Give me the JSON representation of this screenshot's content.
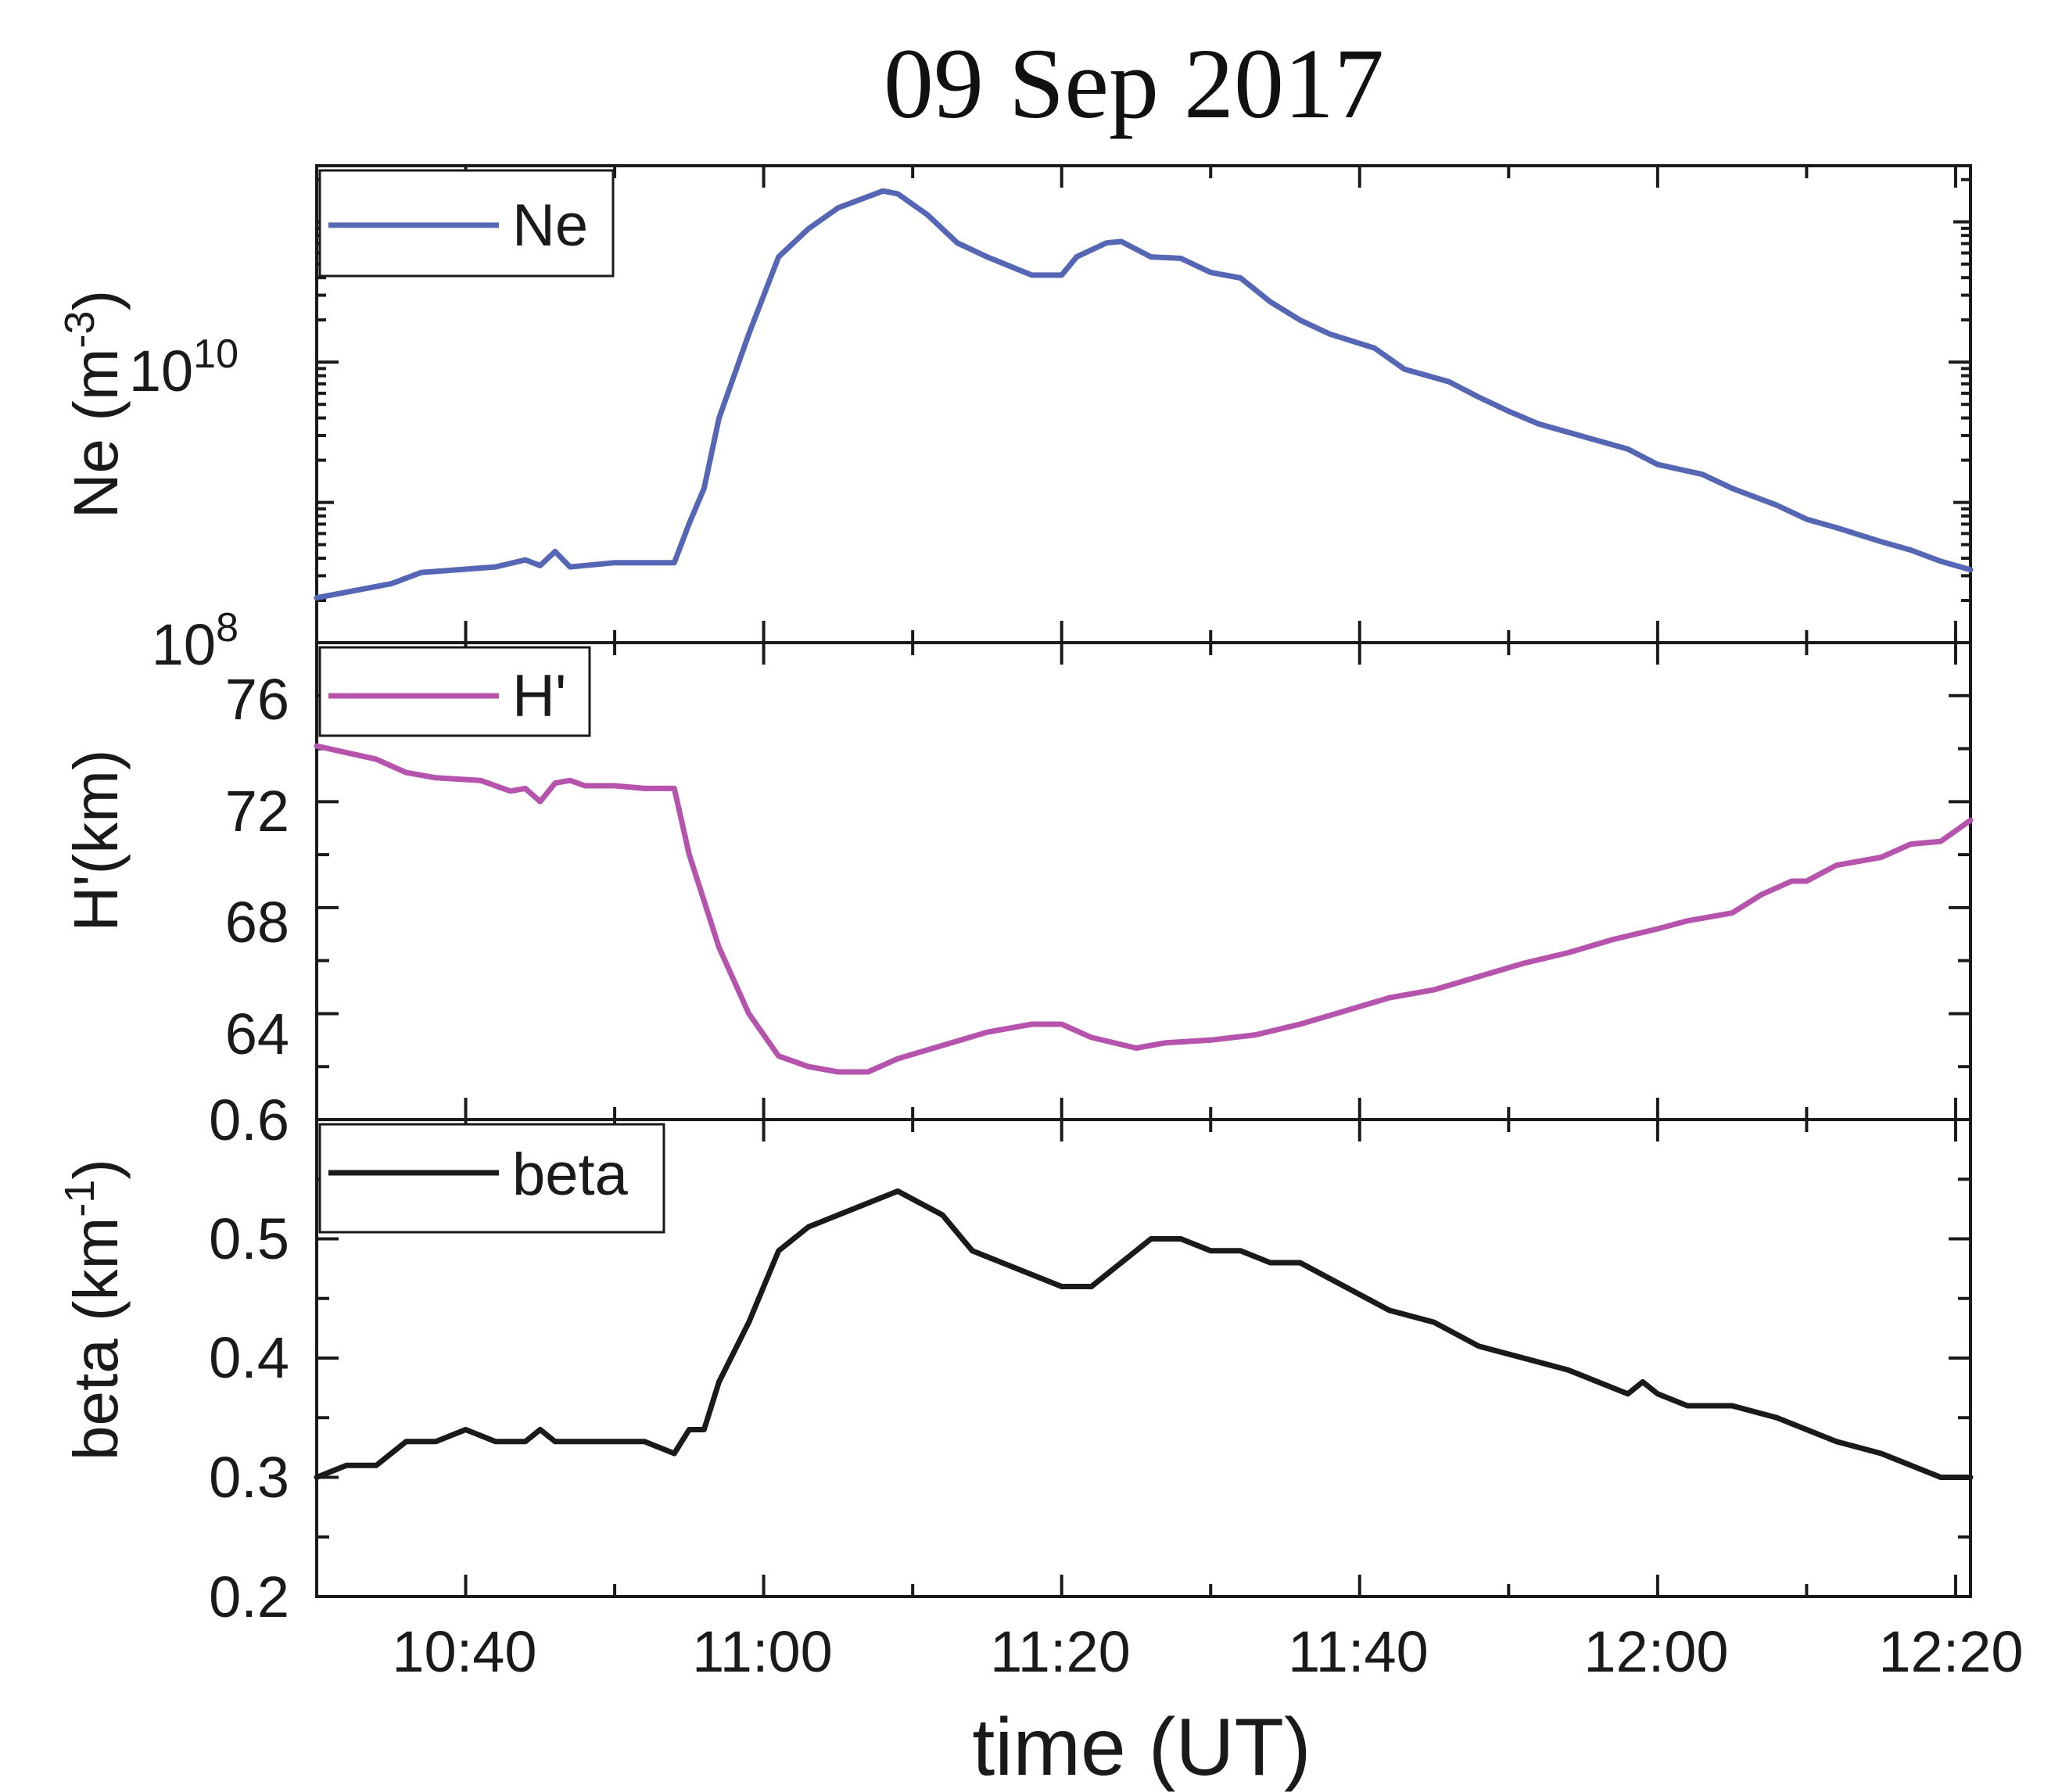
{
  "chart_data": {
    "type": "line",
    "title": "09 Sep 2017",
    "xlabel": "time (UT)",
    "x_tick_labels": [
      "10:40",
      "11:00",
      "11:20",
      "11:40",
      "12:00",
      "12:20"
    ],
    "x_range_minutes": [
      630,
      741
    ],
    "panels": [
      {
        "name": "ne",
        "scale": "log",
        "ylabel_main": "Ne (m",
        "ylabel_sup": "-3",
        "ylabel_tail": ")",
        "ylim_log10": [
          8,
          11.4
        ],
        "tick_labels": [
          {
            "base": "10",
            "exp": "10",
            "log10": 10
          },
          {
            "base": "10",
            "exp": "8",
            "log10": 8
          }
        ],
        "series": [
          {
            "name": "Ne",
            "color": "#5566b5",
            "x_min": [
              630,
              635,
              637,
              642,
              644,
              645,
              646,
              647,
              648,
              650,
              652,
              654,
              655,
              656,
              657,
              659,
              661,
              663,
              665,
              668,
              669,
              671,
              673,
              675,
              678,
              680,
              681,
              683,
              684,
              686,
              688,
              690,
              692,
              694,
              696,
              698,
              701,
              703,
              706,
              708,
              710,
              712,
              715,
              718,
              720,
              723,
              725,
              728,
              730,
              732,
              735,
              737,
              739,
              741
            ],
            "log10": [
              8.32,
              8.42,
              8.5,
              8.54,
              8.59,
              8.55,
              8.65,
              8.54,
              8.55,
              8.57,
              8.57,
              8.57,
              8.85,
              9.1,
              9.6,
              10.2,
              10.75,
              10.95,
              11.1,
              11.22,
              11.2,
              11.05,
              10.85,
              10.75,
              10.62,
              10.62,
              10.75,
              10.85,
              10.86,
              10.75,
              10.74,
              10.64,
              10.6,
              10.43,
              10.3,
              10.2,
              10.1,
              9.95,
              9.86,
              9.75,
              9.65,
              9.56,
              9.47,
              9.38,
              9.27,
              9.2,
              9.1,
              8.98,
              8.88,
              8.82,
              8.72,
              8.66,
              8.58,
              8.52
            ]
          }
        ],
        "legend": {
          "label": "Ne",
          "color": "#5566b5",
          "position": "top-left"
        }
      },
      {
        "name": "hprime",
        "scale": "linear",
        "ylabel": "H'(km)",
        "ylim": [
          60,
          78
        ],
        "tick_values": [
          64,
          68,
          72,
          76
        ],
        "tick_labels": [
          "64",
          "68",
          "72",
          "76"
        ],
        "series": [
          {
            "name": "H'",
            "color": "#b553ad",
            "x_min": [
              630,
              634,
              636,
              638,
              641,
              643,
              644,
              645,
              646,
              647,
              648,
              650,
              652,
              654,
              655,
              657,
              659,
              661,
              663,
              665,
              667,
              669,
              672,
              675,
              678,
              680,
              682,
              685,
              687,
              690,
              693,
              696,
              699,
              702,
              705,
              708,
              711,
              714,
              717,
              720,
              722,
              725,
              727,
              729,
              730,
              732,
              735,
              737,
              739,
              741
            ],
            "y": [
              74.1,
              73.6,
              73.1,
              72.9,
              72.8,
              72.4,
              72.5,
              72.0,
              72.7,
              72.8,
              72.6,
              72.6,
              72.5,
              72.5,
              70.0,
              66.5,
              64.0,
              62.4,
              62.0,
              61.8,
              61.8,
              62.3,
              62.8,
              63.3,
              63.6,
              63.6,
              63.1,
              62.7,
              62.9,
              63.0,
              63.2,
              63.6,
              64.1,
              64.6,
              64.9,
              65.4,
              65.9,
              66.3,
              66.8,
              67.2,
              67.5,
              67.8,
              68.5,
              69.0,
              69.0,
              69.6,
              69.9,
              70.4,
              70.5,
              71.3
            ]
          }
        ],
        "legend": {
          "label": "H'",
          "color": "#b553ad",
          "position": "top-left"
        }
      },
      {
        "name": "beta",
        "scale": "linear",
        "ylabel_main": "beta (km",
        "ylabel_sup": "-1",
        "ylabel_tail": ")",
        "ylim": [
          0.2,
          0.6
        ],
        "tick_values": [
          0.2,
          0.3,
          0.4,
          0.5,
          0.6
        ],
        "tick_labels": [
          "0.2",
          "0.3",
          "0.4",
          "0.5",
          "0.6"
        ],
        "series": [
          {
            "name": "beta",
            "color": "#1a1a1a",
            "x_min": [
              630,
              632,
              634,
              636,
              638,
              640,
              642,
              644,
              645,
              646,
              648,
              650,
              652,
              654,
              655,
              656,
              657,
              659,
              661,
              663,
              665,
              667,
              669,
              672,
              674,
              676,
              678,
              680,
              682,
              684,
              686,
              688,
              690,
              692,
              694,
              696,
              699,
              702,
              705,
              708,
              711,
              714,
              716,
              718,
              719,
              720,
              722,
              725,
              728,
              730,
              732,
              735,
              737,
              739,
              741
            ],
            "y": [
              0.3,
              0.31,
              0.31,
              0.33,
              0.33,
              0.34,
              0.33,
              0.33,
              0.34,
              0.33,
              0.33,
              0.33,
              0.33,
              0.32,
              0.34,
              0.34,
              0.38,
              0.43,
              0.49,
              0.51,
              0.52,
              0.53,
              0.54,
              0.52,
              0.49,
              0.48,
              0.47,
              0.46,
              0.46,
              0.48,
              0.5,
              0.5,
              0.49,
              0.49,
              0.48,
              0.48,
              0.46,
              0.44,
              0.43,
              0.41,
              0.4,
              0.39,
              0.38,
              0.37,
              0.38,
              0.37,
              0.36,
              0.36,
              0.35,
              0.34,
              0.33,
              0.32,
              0.31,
              0.3,
              0.3
            ]
          }
        ],
        "legend": {
          "label": "beta",
          "color": "#1a1a1a",
          "position": "top-left"
        }
      }
    ]
  }
}
